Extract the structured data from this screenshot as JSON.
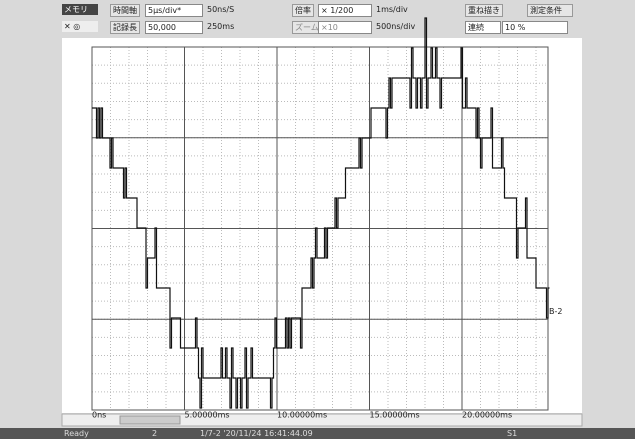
{
  "toolbar": {
    "row1": [
      "メモリ",
      "時間軸",
      "5μs/div*",
      "50ns/S",
      "倍率",
      "× 1/200",
      "1ms/div",
      "重ね描き",
      "測定条件"
    ],
    "row2": [
      "記録長",
      "50,000",
      "250ms",
      "ズーム",
      "×10",
      "500ns/div",
      "連続",
      "10 %"
    ]
  },
  "plot": {
    "x_labels": [
      "0ns",
      "5.00000ms",
      "10.00000ms",
      "15.00000ms",
      "20.00000ms"
    ],
    "trace_label": "B-2"
  },
  "status": {
    "state": "Ready",
    "page": "2",
    "file": "1/7-2 '20/11/24 16:41:44.09",
    "channel": "S1"
  }
}
